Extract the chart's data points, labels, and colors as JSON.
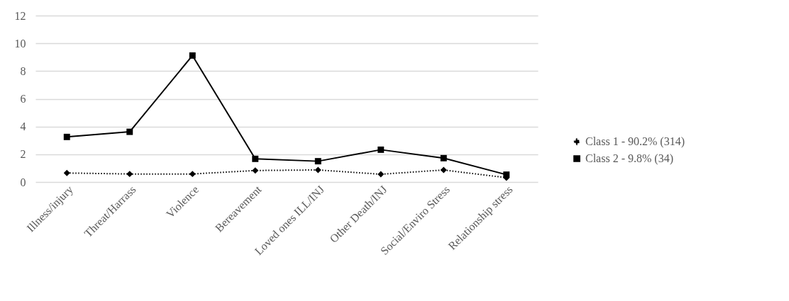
{
  "chart_data": {
    "type": "line",
    "categories": [
      "Illness/injury",
      "Threat/Harrass",
      "Violence",
      "Bereavement",
      "Loved ones ILL/INJ",
      "Other Death/INJ",
      "Social/Enviro Stress",
      "Relationship stress"
    ],
    "series": [
      {
        "name": "Class 1 - 90.2% (314)",
        "color": "#000000",
        "marker": "diamond",
        "line_style": "dotted",
        "values": [
          0.65,
          0.58,
          0.58,
          0.83,
          0.87,
          0.56,
          0.87,
          0.31
        ]
      },
      {
        "name": "Class 2 - 9.8% (34)",
        "color": "#000000",
        "marker": "square",
        "line_style": "solid",
        "values": [
          3.25,
          3.62,
          9.12,
          1.67,
          1.5,
          2.33,
          1.72,
          0.53
        ]
      }
    ],
    "ylim": [
      0,
      12
    ],
    "yticks": [
      0,
      2,
      4,
      6,
      8,
      10,
      12
    ],
    "grid": "y",
    "legend": "right"
  }
}
